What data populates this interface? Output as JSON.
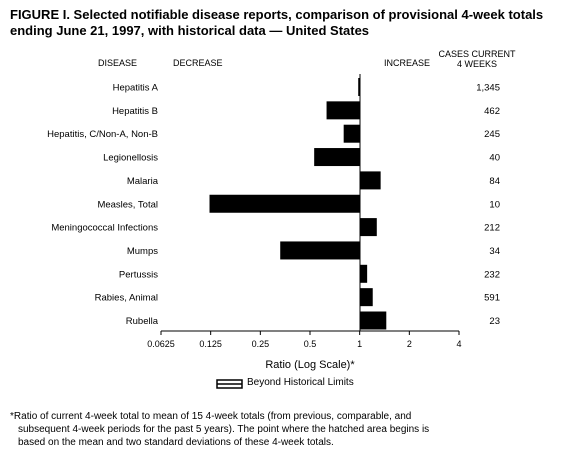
{
  "title": "FIGURE I. Selected notifiable disease reports, comparison of provisional 4-week totals ending June 21, 1997, with historical data — United States",
  "headers": {
    "disease": "DISEASE",
    "decrease": "DECREASE",
    "increase": "INCREASE",
    "cases_line1": "CASES CURRENT",
    "cases_line2": "4 WEEKS"
  },
  "legend": {
    "label": "Beyond Historical Limits"
  },
  "footnote": {
    "mark": "*",
    "line1": "Ratio of current 4-week total to mean of 15 4-week totals (from previous, comparable, and",
    "line2": "subsequent 4-week periods for the past 5 years). The point where the hatched area begins is",
    "line3": "based on the mean and two standard deviations of these 4-week totals."
  },
  "chart_data": {
    "type": "bar",
    "orientation": "horizontal",
    "scale": "log2",
    "xlabel": "Ratio (Log Scale)*",
    "xlim": [
      0.0625,
      4
    ],
    "reference": 1,
    "xticks": [
      {
        "value": 0.0625,
        "label": "0.0625"
      },
      {
        "value": 0.125,
        "label": "0.125"
      },
      {
        "value": 0.25,
        "label": "0.25"
      },
      {
        "value": 0.5,
        "label": "0.5"
      },
      {
        "value": 1,
        "label": "1"
      },
      {
        "value": 2,
        "label": "2"
      },
      {
        "value": 4,
        "label": "4"
      }
    ],
    "categories": [
      "Hepatitis A",
      "Hepatitis B",
      "Hepatitis, C/Non-A, Non-B",
      "Legionellosis",
      "Malaria",
      "Measles, Total",
      "Meningococcal Infections",
      "Mumps",
      "Pertussis",
      "Rabies, Animal",
      "Rubella"
    ],
    "ratios": [
      0.98,
      0.63,
      0.8,
      0.53,
      1.34,
      0.123,
      1.27,
      0.33,
      1.11,
      1.2,
      1.45
    ],
    "cases": [
      "1,345",
      "462",
      "245",
      "40",
      "84",
      "10",
      "212",
      "34",
      "232",
      "591",
      "23"
    ]
  }
}
